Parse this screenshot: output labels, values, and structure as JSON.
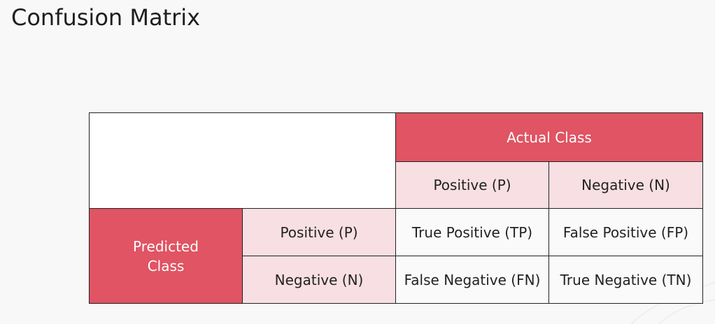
{
  "title": "Confusion Matrix",
  "matrix": {
    "actual_header": "Actual Class",
    "predicted_header_line1": "Predicted",
    "predicted_header_line2": "Class",
    "actual_positive": "Positive (P)",
    "actual_negative": "Negative (N)",
    "predicted_positive": "Positive (P)",
    "predicted_negative": "Negative (N)",
    "tp": "True Positive (TP)",
    "fp": "False Positive (FP)",
    "fn": "False Negative (FN)",
    "tn": "True Negative (TN)"
  },
  "colors": {
    "header_red": "#e05463",
    "header_pink": "#f7dfe3",
    "background": "#f8f8f8"
  }
}
